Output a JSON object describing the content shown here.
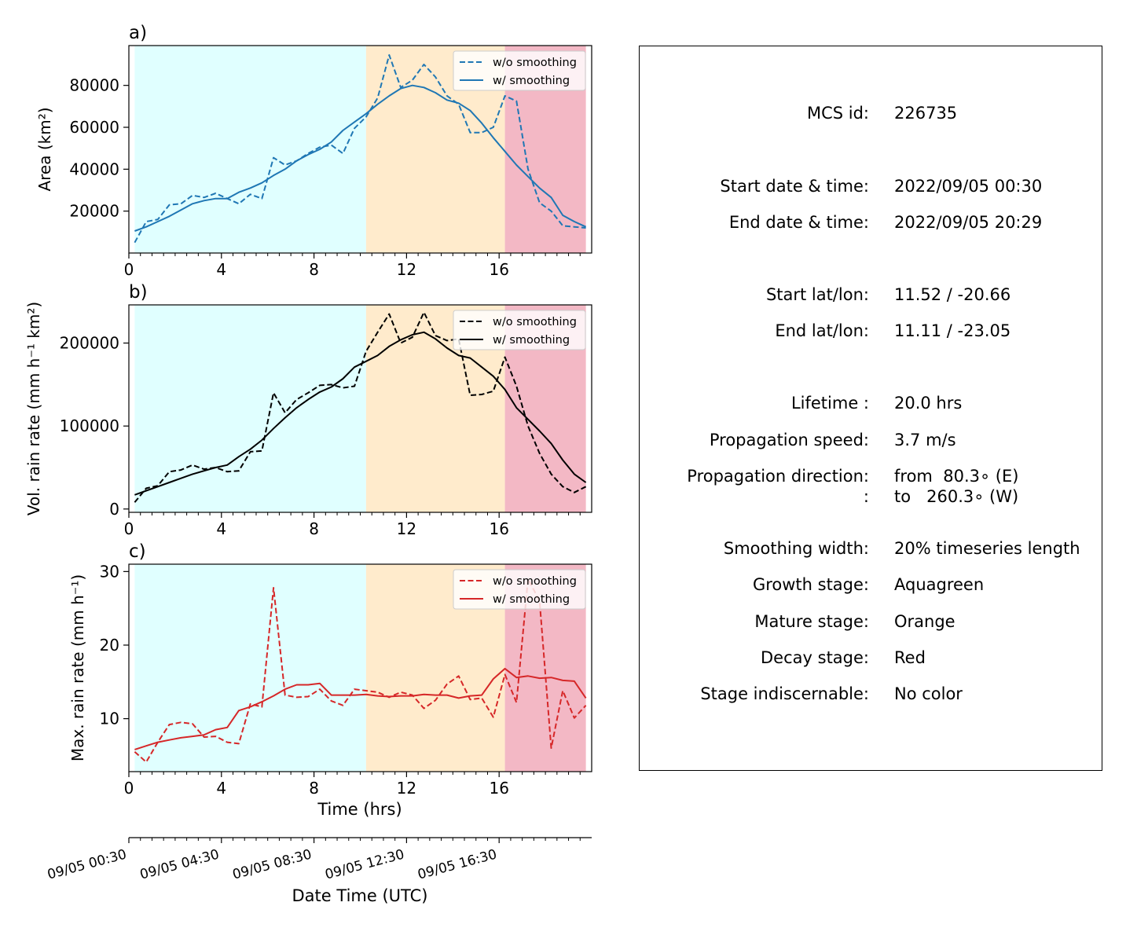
{
  "figure": {
    "stage_colors": {
      "growth": "#e0ffff",
      "mature": "#ffebcc",
      "decay": "#f3b8c5"
    },
    "stage_bounds_hrs": {
      "growth": [
        0.25,
        10.25
      ],
      "mature": [
        10.25,
        16.25
      ],
      "decay": [
        16.25,
        19.75
      ]
    },
    "xlabel_hours": "Time (hrs)",
    "xlabel_datetime": "Date Time (UTC)",
    "datetime_ticks": [
      {
        "hour": 0,
        "label": "09/05 00:30"
      },
      {
        "hour": 4,
        "label": "09/05 04:30"
      },
      {
        "hour": 8,
        "label": "09/05 08:30"
      },
      {
        "hour": 12,
        "label": "09/05 12:30"
      },
      {
        "hour": 16,
        "label": "09/05 16:30"
      }
    ],
    "legend": {
      "raw": "w/o smoothing",
      "smooth": "w/ smoothing"
    }
  },
  "chart_data": [
    {
      "type": "line",
      "panel": "a)",
      "ylabel": "Area  (km²)",
      "color": "#1f77b4",
      "x_ticks": [
        0,
        4,
        8,
        12,
        16
      ],
      "y_ticks": [
        20000,
        40000,
        60000,
        80000
      ],
      "xlim": [
        0,
        20
      ],
      "ylim": [
        0,
        99000
      ],
      "x": [
        0.25,
        0.75,
        1.25,
        1.75,
        2.25,
        2.75,
        3.25,
        3.75,
        4.25,
        4.75,
        5.25,
        5.75,
        6.25,
        6.75,
        7.25,
        7.75,
        8.25,
        8.75,
        9.25,
        9.75,
        10.25,
        10.75,
        11.25,
        11.75,
        12.25,
        12.75,
        13.25,
        13.75,
        14.25,
        14.75,
        15.25,
        15.75,
        16.25,
        16.75,
        17.25,
        17.75,
        18.25,
        18.75,
        19.25,
        19.75
      ],
      "series": [
        {
          "name": "w/o smoothing",
          "style": "dashed",
          "values": [
            5000,
            15000,
            16000,
            23000,
            23500,
            27500,
            26500,
            28500,
            26000,
            23500,
            28000,
            26000,
            45500,
            42000,
            44000,
            47500,
            50500,
            51500,
            47500,
            59500,
            65000,
            74000,
            94500,
            79000,
            82500,
            90000,
            84000,
            75000,
            71000,
            57500,
            57500,
            60000,
            75000,
            72500,
            40000,
            24000,
            20000,
            13000,
            12500,
            12000
          ]
        },
        {
          "name": "w/ smoothing",
          "style": "solid",
          "values": [
            10500,
            12500,
            15000,
            17500,
            20500,
            23500,
            25000,
            26000,
            26000,
            29000,
            31000,
            33500,
            37000,
            40000,
            44000,
            47000,
            49500,
            53000,
            58500,
            62500,
            66500,
            71000,
            75000,
            78500,
            80000,
            79000,
            76500,
            73000,
            71500,
            68000,
            62000,
            55000,
            48500,
            42000,
            36500,
            31000,
            26500,
            18000,
            15000,
            12500
          ]
        }
      ]
    },
    {
      "type": "line",
      "panel": "b)",
      "ylabel": "Vol. rain rate (mm h⁻¹ km²)",
      "color": "#000000",
      "x_ticks": [
        0,
        4,
        8,
        12,
        16
      ],
      "y_ticks": [
        0,
        100000,
        200000
      ],
      "xlim": [
        0,
        20
      ],
      "ylim": [
        -4000,
        246000
      ],
      "x": [
        0.25,
        0.75,
        1.25,
        1.75,
        2.25,
        2.75,
        3.25,
        3.75,
        4.25,
        4.75,
        5.25,
        5.75,
        6.25,
        6.75,
        7.25,
        7.75,
        8.25,
        8.75,
        9.25,
        9.75,
        10.25,
        10.75,
        11.25,
        11.75,
        12.25,
        12.75,
        13.25,
        13.75,
        14.25,
        14.75,
        15.25,
        15.75,
        16.25,
        16.75,
        17.25,
        17.75,
        18.25,
        18.75,
        19.25,
        19.75
      ],
      "series": [
        {
          "name": "w/o smoothing",
          "style": "dashed",
          "values": [
            8000,
            25000,
            28000,
            45000,
            47000,
            53000,
            48000,
            50000,
            45000,
            46000,
            69000,
            70000,
            140000,
            116000,
            132000,
            140000,
            149000,
            150000,
            146000,
            148000,
            190000,
            213000,
            235000,
            200000,
            207000,
            237000,
            209000,
            203000,
            205000,
            137000,
            138000,
            142000,
            183000,
            148000,
            100000,
            67000,
            42000,
            27000,
            20000,
            27000
          ]
        },
        {
          "name": "w/ smoothing",
          "style": "solid",
          "values": [
            17000,
            22000,
            27000,
            32000,
            37000,
            42000,
            46000,
            50000,
            53000,
            63000,
            72000,
            83000,
            97000,
            110000,
            122000,
            132000,
            141000,
            147000,
            157000,
            171000,
            178000,
            185000,
            196000,
            204000,
            210000,
            213000,
            205000,
            194000,
            185000,
            182000,
            171000,
            160000,
            144000,
            122000,
            108000,
            94000,
            79000,
            59000,
            42000,
            32000
          ]
        }
      ]
    },
    {
      "type": "line",
      "panel": "c)",
      "ylabel": "Max. rain rate  (mm h⁻¹)",
      "color": "#d62728",
      "x_ticks": [
        0,
        4,
        8,
        12,
        16
      ],
      "y_ticks": [
        10,
        20,
        30
      ],
      "xlim": [
        0,
        20
      ],
      "ylim": [
        2.8,
        31
      ],
      "x": [
        0.25,
        0.75,
        1.25,
        1.75,
        2.25,
        2.75,
        3.25,
        3.75,
        4.25,
        4.75,
        5.25,
        5.75,
        6.25,
        6.75,
        7.25,
        7.75,
        8.25,
        8.75,
        9.25,
        9.75,
        10.25,
        10.75,
        11.25,
        11.75,
        12.25,
        12.75,
        13.25,
        13.75,
        14.25,
        14.75,
        15.25,
        15.75,
        16.25,
        16.75,
        17.25,
        17.75,
        18.25,
        18.75,
        19.25,
        19.75
      ],
      "series": [
        {
          "name": "w/o smoothing",
          "style": "dashed",
          "values": [
            5.5,
            4.1,
            6.8,
            9.2,
            9.5,
            9.3,
            7.5,
            7.6,
            6.8,
            6.6,
            12.0,
            11.6,
            27.8,
            13.2,
            12.9,
            13.0,
            14.0,
            12.4,
            11.8,
            14.0,
            13.8,
            13.6,
            12.9,
            13.6,
            13.2,
            11.4,
            12.5,
            14.7,
            15.8,
            12.6,
            12.8,
            10.2,
            16.0,
            12.2,
            29.0,
            26.0,
            6.0,
            13.8,
            10.1,
            11.8
          ]
        },
        {
          "name": "w/ smoothing",
          "style": "solid",
          "values": [
            5.8,
            6.3,
            6.8,
            7.1,
            7.4,
            7.6,
            7.8,
            8.5,
            8.8,
            11.1,
            11.6,
            12.3,
            13.1,
            14.0,
            14.6,
            14.6,
            14.8,
            13.2,
            13.2,
            13.2,
            13.3,
            13.1,
            13.0,
            13.1,
            13.1,
            13.3,
            13.2,
            13.2,
            12.8,
            13.1,
            13.2,
            15.4,
            16.8,
            15.6,
            15.8,
            15.5,
            15.6,
            15.2,
            15.1,
            12.8
          ]
        }
      ]
    }
  ],
  "info": {
    "rows": [
      {
        "label": "MCS id:",
        "value": "226735"
      },
      {
        "label": "Start date & time:",
        "value": "2022/09/05 00:30"
      },
      {
        "label": "End date & time:",
        "value": "2022/09/05 20:29"
      },
      {
        "label": "Start lat/lon:",
        "value": "11.52 / -20.66"
      },
      {
        "label": "End lat/lon:",
        "value": "11.11 / -23.05"
      },
      {
        "label": "Lifetime :",
        "value": "20.0 hrs"
      },
      {
        "label": "Propagation speed:",
        "value": "3.7 m/s"
      },
      {
        "label": "Propagation direction:",
        "value": "from  80.3∘ (E)"
      },
      {
        "label": ":",
        "value": "to   260.3∘ (W)"
      },
      {
        "label": "Smoothing width:",
        "value": "20% timeseries length"
      },
      {
        "label": "Growth stage:",
        "value": "Aquagreen"
      },
      {
        "label": "Mature stage:",
        "value": "Orange"
      },
      {
        "label": "Decay stage:",
        "value": "Red"
      },
      {
        "label": "Stage indiscernable:",
        "value": "No color"
      }
    ]
  }
}
